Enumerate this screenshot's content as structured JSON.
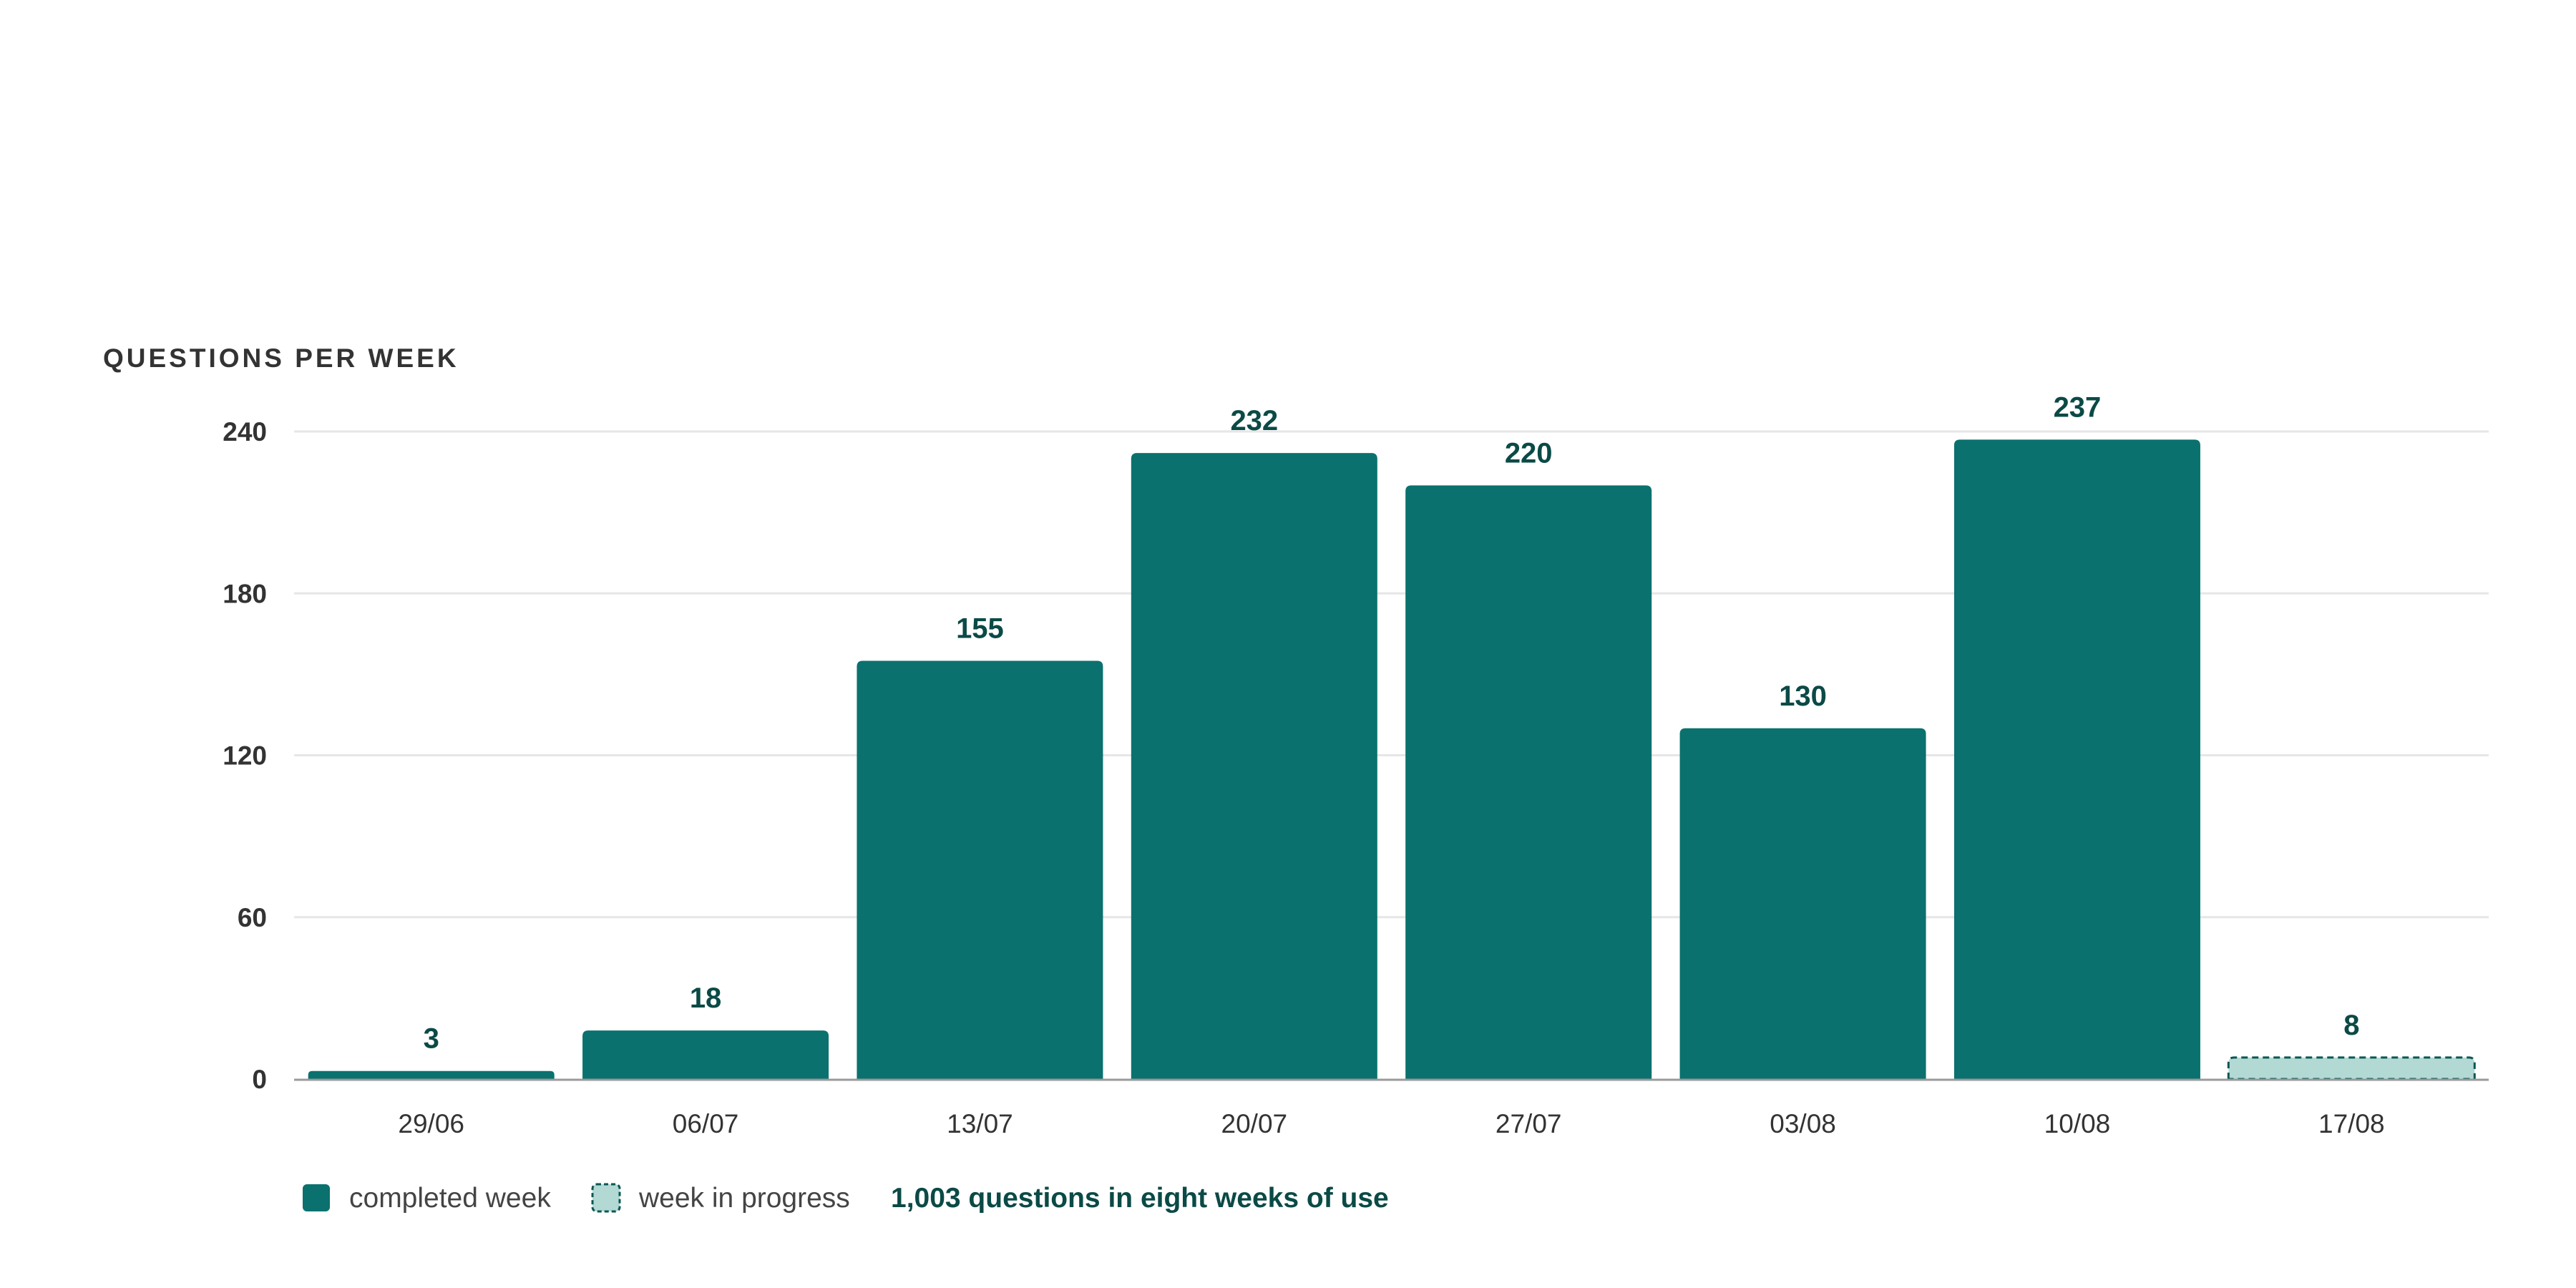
{
  "chart_data": {
    "type": "bar",
    "title": "QUESTIONS PER WEEK",
    "xlabel": "",
    "ylabel": "",
    "categories": [
      "29/06",
      "06/07",
      "13/07",
      "20/07",
      "27/07",
      "03/08",
      "10/08",
      "17/08"
    ],
    "values": [
      3,
      18,
      155,
      232,
      220,
      130,
      237,
      8
    ],
    "in_progress": [
      false,
      false,
      false,
      false,
      false,
      false,
      false,
      true
    ],
    "ylim": [
      0,
      240
    ],
    "yticks": [
      0,
      60,
      120,
      180,
      240
    ],
    "grid": true,
    "legend": {
      "placement": "bottom-left",
      "items": [
        {
          "label": "completed week",
          "style": "solid"
        },
        {
          "label": "week in progress",
          "style": "dashed"
        }
      ],
      "summary": "1,003 questions in eight weeks of use"
    }
  },
  "colors": {
    "bar": "#0a716e",
    "bar_in_progress_fill": "#b3d9d4",
    "bar_in_progress_stroke": "#0a5752",
    "value_label": "#0b4a46",
    "gridline": "#e6e6e6",
    "axis": "#9a9a9a",
    "summary_text": "#0b4a46"
  }
}
